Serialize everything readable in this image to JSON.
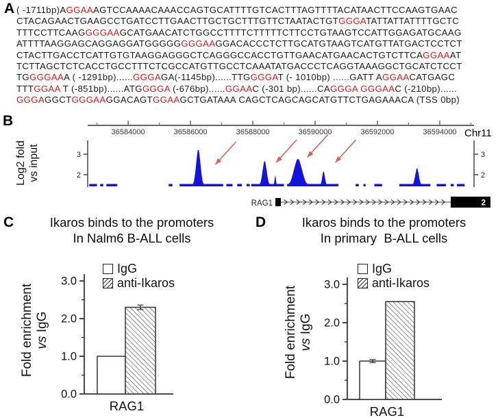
{
  "panels": {
    "a_label": "A",
    "b_label": "B",
    "c_label": "C",
    "d_label": "D"
  },
  "colors": {
    "sequence_red": "#e01818",
    "track_blue": "#1414dd",
    "arrow_red": "#dd6055",
    "axis_gray": "#666666",
    "text_black": "#111111"
  },
  "panel_a": {
    "lines": [
      [
        [
          "( -1711bp)A",
          "k"
        ],
        [
          "GGAA",
          "r"
        ],
        [
          "AGTCCAAAACAAACCAGTGCATTTTGTCACTTTAGTTTTACATAACTTCCAAGTGAAC",
          "k"
        ]
      ],
      [
        [
          "CTACAGAACTGAAGCCTGATCCTTGAACTTGCTGCTTTGTTCTAATACTGT",
          "k"
        ],
        [
          "GGGA",
          "r"
        ],
        [
          "TATTATTATTTTGCTC",
          "k"
        ]
      ],
      [
        [
          "TTTCCTTCAAG",
          "k"
        ],
        [
          "GGGAA",
          "r"
        ],
        [
          "GCATGAACATCTGGCCTTTTCTTTTTCTTCCTGTAAGTCCATTGGAGATGCAAG",
          "k"
        ]
      ],
      [
        [
          "ATTTTAAGGAGCAGGAGGATGGGGG",
          "k"
        ],
        [
          "GGGAA",
          "r"
        ],
        [
          "GGACACCCTCTTGCATGTAAGTCATGTTATGACTCCTCT",
          "k"
        ]
      ],
      [
        [
          "CTACTTGACCTCATTGTGTAAGGAGGGCTCAGGGCCACCTGTTGAACATGAACACTGTCTTCA",
          "k"
        ],
        [
          "GGAA",
          "r"
        ],
        [
          "AT",
          "k"
        ]
      ],
      [
        [
          "TCTTAGCTCTCACCTGCCTTTCTCGCCATGTTGCCTCAAATATGACCCTCAGGTAAAGGCTGCATCTCCT",
          "k"
        ]
      ],
      [
        [
          "TG",
          "k"
        ],
        [
          "GGGAA",
          "r"
        ],
        [
          "A ( -1291bp)......",
          "k"
        ],
        [
          "GGGA",
          "r"
        ],
        [
          "GA(-1145bp)......TTG",
          "k"
        ],
        [
          "GGGA",
          "r"
        ],
        [
          "T (- 1010bp) ......GATT A",
          "k"
        ],
        [
          "GGAA",
          "r"
        ],
        [
          "CATGAGC",
          "k"
        ]
      ],
      [
        [
          "TTT",
          "k"
        ],
        [
          "GGAA",
          "r"
        ],
        [
          " T (-851bp)......ATG",
          "k"
        ],
        [
          "GGGA",
          "r"
        ],
        [
          " (-676bp)......",
          "k"
        ],
        [
          "GGAA",
          "r"
        ],
        [
          "C (-301 bp)......CA",
          "k"
        ],
        [
          "GGGA GGGAA",
          "r"
        ],
        [
          "C (-210bp)......",
          "k"
        ]
      ],
      [
        [
          "GGGA",
          "r"
        ],
        [
          "GGCT",
          "k"
        ],
        [
          "GGGAA",
          "r"
        ],
        [
          "GGACAGT",
          "k"
        ],
        [
          "GGAA",
          "r"
        ],
        [
          "GCTGATAAA CAGCTCAGCAGCATGTTCTGAGAAACA (TSS 0bp)",
          "k"
        ]
      ]
    ]
  },
  "chart_data": [
    {
      "id": "B",
      "type": "area",
      "title": "Ikaros ChIP-seq coverage across the RAG1 locus",
      "ylabel_line1": "Log2 fold",
      "ylabel_line2": "vs input",
      "chromosome": "Chr11",
      "x_ticks": [
        36584000,
        36586000,
        36588000,
        36590000,
        36592000,
        36594000
      ],
      "xlim": [
        36582700,
        36595100
      ],
      "y_ticks": [
        2,
        3
      ],
      "ylim": [
        1.4,
        3.6
      ],
      "baseline_value": 1.5,
      "baseline_segments": [
        [
          36582750,
          36583000
        ],
        [
          36583100,
          36583200
        ],
        [
          36583300,
          36583650
        ],
        [
          36585300,
          36585420
        ],
        [
          36585650,
          36587050
        ],
        [
          36587150,
          36587350
        ],
        [
          36587500,
          36587650
        ],
        [
          36587800,
          36587900
        ],
        [
          36587950,
          36589000
        ],
        [
          36589100,
          36590750
        ],
        [
          36591300,
          36591400
        ],
        [
          36591550,
          36591620
        ],
        [
          36591900,
          36592150
        ],
        [
          36592700,
          36593700
        ],
        [
          36593900,
          36594200
        ],
        [
          36594350,
          36594450
        ],
        [
          36594550,
          36594800
        ]
      ],
      "peaks": [
        {
          "pos": 36586250,
          "halfwidth_bp": 180,
          "log2_fold": 3.2
        },
        {
          "pos": 36588380,
          "halfwidth_bp": 170,
          "log2_fold": 2.65
        },
        {
          "pos": 36588720,
          "halfwidth_bp": 55,
          "log2_fold": 1.95
        },
        {
          "pos": 36589450,
          "halfwidth_bp": 330,
          "log2_fold": 2.75
        },
        {
          "pos": 36590270,
          "halfwidth_bp": 110,
          "log2_fold": 2.15
        },
        {
          "pos": 36593270,
          "halfwidth_bp": 150,
          "log2_fold": 2.3
        }
      ],
      "arrows": [
        [
          36586800,
          2.5
        ],
        [
          36588750,
          2.6
        ],
        [
          36589750,
          2.85
        ],
        [
          36590650,
          2.6
        ]
      ],
      "gene": {
        "name": "RAG1",
        "exon_label": "2"
      }
    },
    {
      "id": "C",
      "type": "bar",
      "title_line1": "Ikaros binds to the promoters",
      "title_line2": "In Nalm6 B-ALL cells",
      "categories": [
        "RAG1"
      ],
      "series": [
        {
          "name": "IgG",
          "values": [
            1.0
          ],
          "errors": [
            0
          ]
        },
        {
          "name": "anti-Ikaros",
          "values": [
            2.3
          ],
          "errors": [
            0.06
          ]
        }
      ],
      "ylabel_line1": "Fold enrichment",
      "ylabel_vs": "vs",
      "ylabel_unit": "IgG",
      "y_ticks": [
        "0.0",
        "1.0",
        "2.0",
        "3.0"
      ],
      "ylim": [
        0,
        3.3
      ],
      "legend_position": "top"
    },
    {
      "id": "D",
      "type": "bar",
      "title_line1": "Ikaros binds to the promoters",
      "title_line2": "In primary  B-ALL cells",
      "categories": [
        "RAG1"
      ],
      "series": [
        {
          "name": "IgG",
          "values": [
            1.0
          ],
          "errors": [
            0.04
          ]
        },
        {
          "name": "anti-Ikaros",
          "values": [
            2.55
          ],
          "errors": [
            0
          ]
        }
      ],
      "ylabel_line1": "Fold enrichment",
      "ylabel_vs": "vs",
      "ylabel_unit": "IgG",
      "y_ticks": [
        "0.0",
        "1.0",
        "2.0",
        "3.0"
      ],
      "ylim": [
        0,
        3.3
      ],
      "legend_position": "top"
    }
  ]
}
